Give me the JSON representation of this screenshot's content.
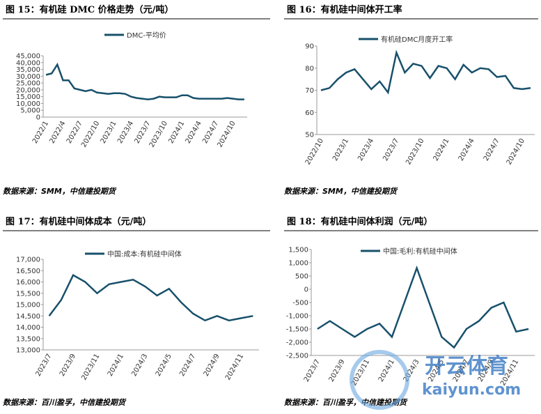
{
  "chart_data": [
    {
      "type": "line",
      "title": "图 15：有机硅 DMC 价格走势（元/吨）",
      "source": "数据来源：SMM，中信建投期货",
      "categories": [
        "2022/1",
        null,
        null,
        "2022/4",
        null,
        null,
        "2022/7",
        null,
        null,
        "2022/10",
        null,
        null,
        "2023/1",
        null,
        null,
        "2023/4",
        null,
        null,
        "2023/7",
        null,
        null,
        "2023/10",
        null,
        null,
        "2024/1",
        null,
        null,
        "2024/4",
        null,
        null,
        "2024/7",
        null,
        null,
        "2024/10",
        null,
        null
      ],
      "series": [
        {
          "name": "DMC-平均价",
          "color": "#17506b",
          "values": [
            31000,
            32000,
            38500,
            27000,
            27000,
            21000,
            20000,
            19000,
            20000,
            18000,
            17500,
            17000,
            17500,
            17500,
            17000,
            15000,
            14000,
            13500,
            13000,
            13500,
            15000,
            14500,
            14500,
            14500,
            16000,
            16000,
            14000,
            13500,
            13500,
            13500,
            13500,
            13500,
            14000,
            13500,
            13000,
            13000
          ]
        }
      ],
      "ylim": [
        0,
        45000
      ],
      "yticks": [
        0,
        {
          "value": 5000,
          "label": "5,000"
        },
        {
          "value": 10000,
          "label": "10,000"
        },
        {
          "value": 15000,
          "label": "15,000"
        },
        {
          "value": 20000,
          "label": "20,000"
        },
        {
          "value": 25000,
          "label": "25,000"
        },
        {
          "value": 30000,
          "label": "30,000"
        },
        {
          "value": 35000,
          "label": "35,000"
        },
        {
          "value": 40000,
          "label": "40,000"
        },
        {
          "value": 45000,
          "label": "45,000"
        }
      ],
      "grid": false
    },
    {
      "type": "line",
      "title": "图 16：有机硅中间体开工率",
      "source": "数据来源：SMM，中信建投期货",
      "categories": [
        "2022/10",
        null,
        null,
        "2023/1",
        null,
        null,
        "2023/4",
        null,
        null,
        "2023/7",
        null,
        null,
        "2023/10",
        null,
        null,
        "2024/1",
        null,
        null,
        "2024/4",
        null,
        null,
        "2024/7",
        null,
        null,
        "2024/10",
        null
      ],
      "series": [
        {
          "name": "有机硅DMC月度开工率",
          "color": "#17506b",
          "values": [
            70,
            71,
            75,
            78,
            79.5,
            75,
            70.5,
            74,
            69,
            87,
            78,
            82,
            81,
            75.5,
            81,
            80,
            75,
            81.5,
            78,
            80,
            79.5,
            76,
            76.5,
            71,
            70.5,
            71
          ]
        }
      ],
      "ylim": [
        50,
        90
      ],
      "yticks": [
        50,
        60,
        70,
        80,
        90
      ],
      "grid": false
    },
    {
      "type": "line",
      "title": "图 17：有机硅中间体成本（元/吨）",
      "source": "数据来源：百川盈孚，中信建投期货",
      "categories": [
        "2023/7",
        null,
        "2023/9",
        null,
        "2023/11",
        null,
        "2024/1",
        null,
        "2024/3",
        null,
        "2024/5",
        null,
        "2024/7",
        null,
        "2024/9",
        null,
        "2024/11",
        null
      ],
      "series": [
        {
          "name": "中国:成本:有机硅中间体",
          "color": "#17506b",
          "values": [
            14500,
            15200,
            16300,
            16000,
            15500,
            15900,
            16000,
            16100,
            15800,
            15400,
            15700,
            15100,
            14600,
            14300,
            14500,
            14300,
            14400,
            14500
          ]
        }
      ],
      "ylim": [
        13000,
        17000
      ],
      "yticks": [
        {
          "value": 13000,
          "label": "13,000"
        },
        {
          "value": 13500,
          "label": "13,500"
        },
        {
          "value": 14000,
          "label": "14,000"
        },
        {
          "value": 14500,
          "label": "14,500"
        },
        {
          "value": 15000,
          "label": "15,000"
        },
        {
          "value": 15500,
          "label": "15,500"
        },
        {
          "value": 16000,
          "label": "16,000"
        },
        {
          "value": 16500,
          "label": "16,500"
        },
        {
          "value": 17000,
          "label": "17,000"
        }
      ],
      "grid": false
    },
    {
      "type": "line",
      "title": "图 18：有机硅中间体利润（元/吨）",
      "source": "数据来源：百川盈孚，中信建投期货",
      "categories": [
        "2023/7",
        null,
        "2023/9",
        null,
        "2023/11",
        null,
        "2024/1",
        null,
        "2024/3",
        null,
        "2024/5",
        null,
        "2024/7",
        null,
        "2024/9",
        null,
        "2024/11",
        null
      ],
      "series": [
        {
          "name": "中国:毛利:有机硅中间体",
          "color": "#17506b",
          "values": [
            -1500,
            -1200,
            -1500,
            -1800,
            -1500,
            -1300,
            -1800,
            -500,
            800,
            -500,
            -1800,
            -2200,
            -1500,
            -1200,
            -700,
            -500,
            -1600,
            -1500
          ]
        }
      ],
      "ylim": [
        -2500,
        1500
      ],
      "yticks": [
        {
          "value": -2500,
          "label": "-2,500"
        },
        {
          "value": -2000,
          "label": "-2,000"
        },
        {
          "value": -1500,
          "label": "-1,500"
        },
        {
          "value": -1000,
          "label": "-1,000"
        },
        -500,
        0,
        500,
        {
          "value": 1000,
          "label": "1,000"
        },
        {
          "value": 1500,
          "label": "1,500"
        }
      ],
      "grid": false
    }
  ],
  "watermark": {
    "name": "开云体育",
    "url": "kaiyun.com"
  }
}
